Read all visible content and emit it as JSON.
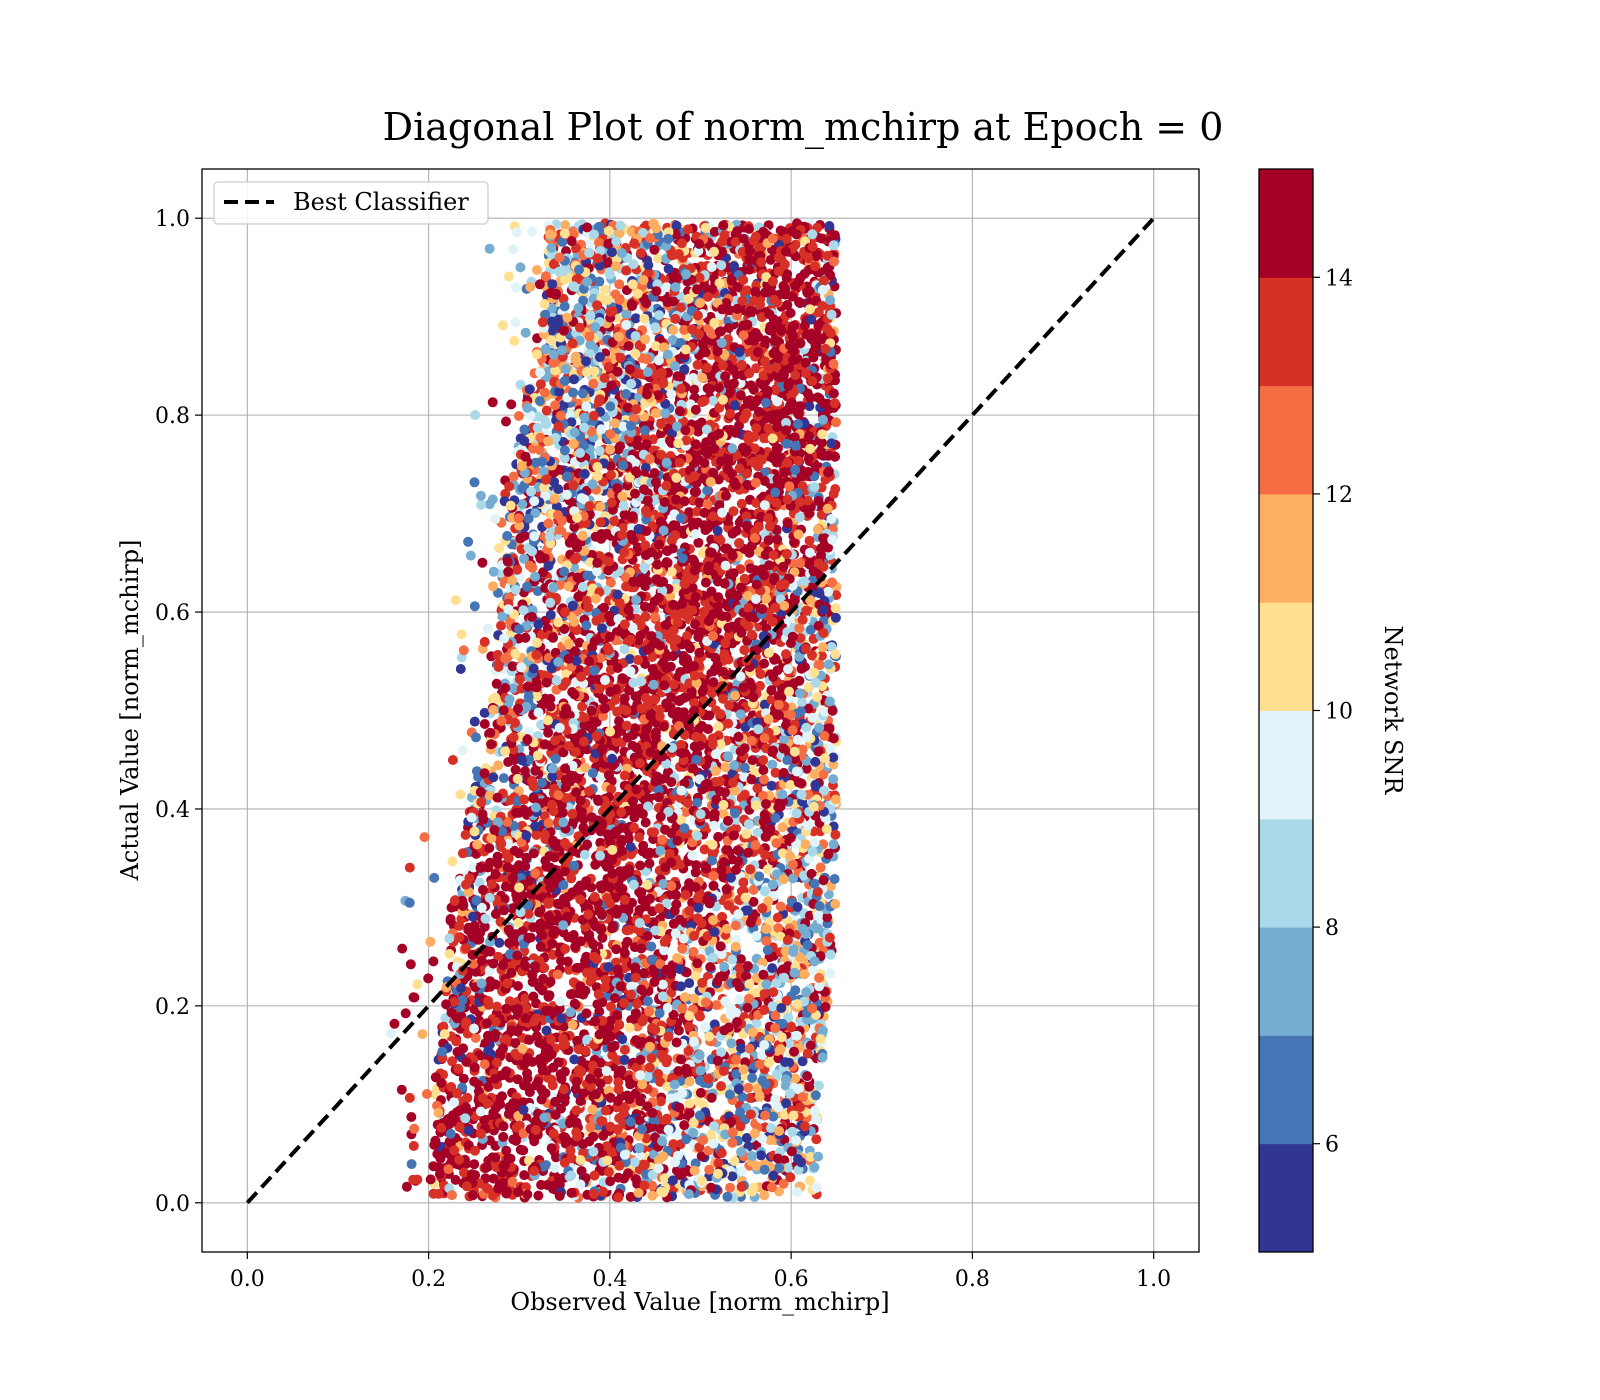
{
  "chart_data": {
    "type": "scatter",
    "title": "Diagonal Plot of norm_mchirp at Epoch = 0",
    "xlabel": "Observed Value [norm_mchirp]",
    "ylabel": "Actual Value [norm_mchirp]",
    "xlim": [
      -0.05,
      1.05
    ],
    "ylim": [
      -0.05,
      1.05
    ],
    "xticks": [
      0.0,
      0.2,
      0.4,
      0.6,
      0.8,
      1.0
    ],
    "yticks": [
      0.0,
      0.2,
      0.4,
      0.6,
      0.8,
      1.0
    ],
    "xtick_labels": [
      "0.0",
      "0.2",
      "0.4",
      "0.6",
      "0.8",
      "1.0"
    ],
    "ytick_labels": [
      "0.0",
      "0.2",
      "0.4",
      "0.6",
      "0.8",
      "1.0"
    ],
    "grid": true,
    "legend": {
      "placement": "top-left",
      "entries": [
        "Best Classifier"
      ]
    },
    "best_classifier_line": {
      "x": [
        0.0,
        1.0
      ],
      "y": [
        0.0,
        1.0
      ],
      "style": "dashed",
      "color": "#000000"
    },
    "colorbar": {
      "label": "Network SNR",
      "range": [
        5,
        15
      ],
      "ticks": [
        6,
        8,
        10,
        12,
        14
      ],
      "tick_labels": [
        "6",
        "8",
        "10",
        "12",
        "14"
      ],
      "colors": [
        "#313695",
        "#4575b4",
        "#74add1",
        "#abd9e9",
        "#e0f3f8",
        "#fee090",
        "#fdae61",
        "#f46d43",
        "#d73027",
        "#a50026"
      ]
    },
    "point_distribution": {
      "description_note": "",
      "bands": [
        {
          "y": 0.1,
          "x_min": 0.13,
          "x_max": 0.63
        },
        {
          "y": 0.3,
          "x_min": 0.15,
          "x_max": 0.65
        },
        {
          "y": 0.5,
          "x_min": 0.2,
          "x_max": 0.65
        },
        {
          "y": 0.7,
          "x_min": 0.22,
          "x_max": 0.65
        },
        {
          "y": 0.9,
          "x_min": 0.27,
          "x_max": 0.65
        }
      ],
      "dense_region_snr": 14.5,
      "sparse_region_snr_range": [
        5,
        13
      ]
    }
  }
}
